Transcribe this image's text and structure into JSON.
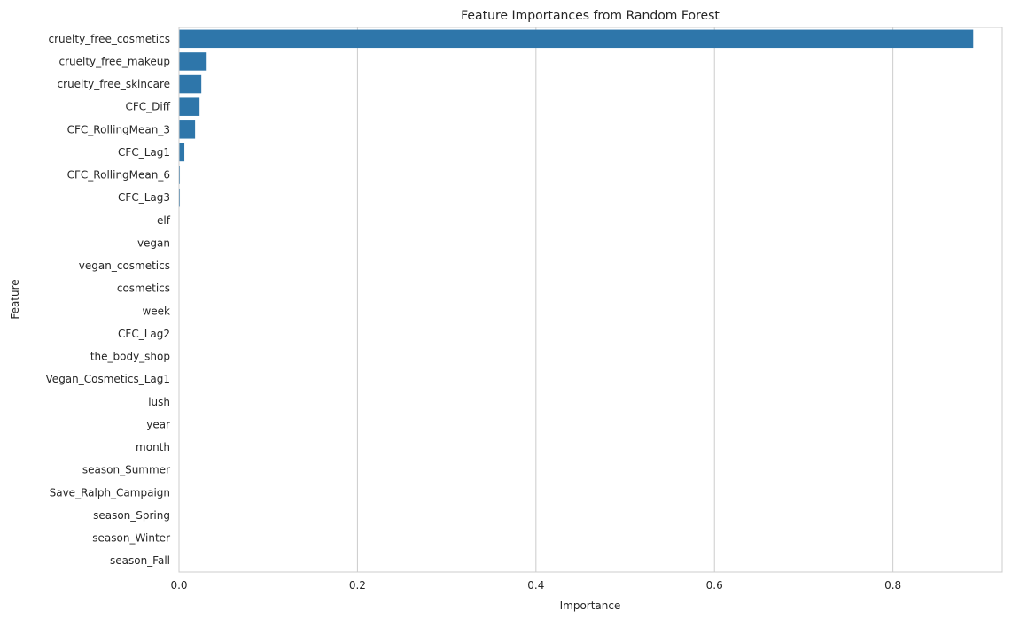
{
  "chart_data": {
    "type": "bar",
    "orientation": "horizontal",
    "title": "Feature Importances from Random Forest",
    "xlabel": "Importance",
    "ylabel": "Feature",
    "xlim": [
      0,
      0.9225
    ],
    "xticks": [
      0.0,
      0.2,
      0.4,
      0.6,
      0.8
    ],
    "xtick_labels": [
      "0.0",
      "0.2",
      "0.4",
      "0.6",
      "0.8"
    ],
    "grid": "vertical",
    "bar_color": "#2e76aa",
    "categories": [
      "cruelty_free_cosmetics",
      "cruelty_free_makeup",
      "cruelty_free_skincare",
      "CFC_Diff",
      "CFC_RollingMean_3",
      "CFC_Lag1",
      "CFC_RollingMean_6",
      "CFC_Lag3",
      "elf",
      "vegan",
      "vegan_cosmetics",
      "cosmetics",
      "week",
      "CFC_Lag2",
      "the_body_shop",
      "Vegan_Cosmetics_Lag1",
      "lush",
      "year",
      "month",
      "season_Summer",
      "Save_Ralph_Campaign",
      "season_Spring",
      "season_Winter",
      "season_Fall"
    ],
    "values": [
      0.89,
      0.031,
      0.025,
      0.023,
      0.018,
      0.006,
      0.001,
      0.001,
      0.0005,
      0.0004,
      0.0003,
      0.0003,
      0.0002,
      0.0002,
      0.0002,
      0.0001,
      0.0001,
      0.0001,
      0.0001,
      0.0,
      0.0,
      0.0,
      0.0,
      0.0
    ]
  }
}
